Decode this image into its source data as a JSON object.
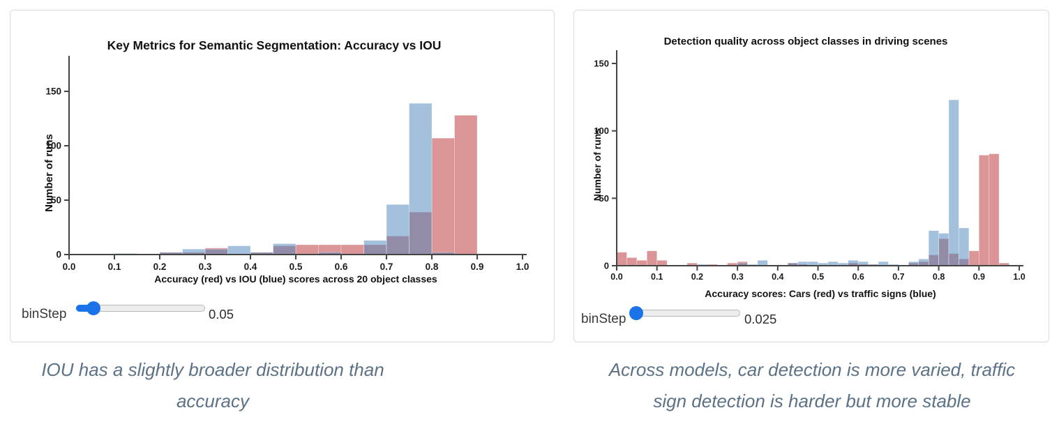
{
  "accent_color": "#1a73e8",
  "caption_color": "#5b7186",
  "panels": [
    {
      "name": "semantic-segmentation-panel",
      "slider": {
        "label": "binStep",
        "value": "0.05"
      },
      "caption_lines": [
        "IOU has a slightly broader distribution than accuracy"
      ]
    },
    {
      "name": "detection-quality-panel",
      "slider": {
        "label": "binStep",
        "value": "0.025"
      },
      "caption_lines": [
        "Across models, car detection is more varied, traffic",
        "sign detection is harder but more stable"
      ]
    }
  ],
  "chart_data": [
    {
      "type": "bar",
      "subtype": "overlaid-histogram",
      "title": "Key Metrics for Semantic Segmentation: Accuracy vs IOU",
      "xlabel": "Accuracy (red) vs IOU (blue) scores across 20 object classes",
      "ylabel": "Number of runs",
      "xlim": [
        0.0,
        1.0
      ],
      "ylim": [
        0,
        183
      ],
      "grid": false,
      "legend_position": "none",
      "bin_width": 0.05,
      "x_ticks": [
        0.0,
        0.1,
        0.2,
        0.3,
        0.4,
        0.5,
        0.6,
        0.7,
        0.8,
        0.9,
        1.0
      ],
      "y_ticks": [
        0,
        50,
        100,
        150
      ],
      "series": [
        {
          "name": "Accuracy (red)",
          "color": "#C44E52",
          "fill_opacity": 0.6,
          "bins": [
            [
              0.2,
              2
            ],
            [
              0.25,
              2
            ],
            [
              0.3,
              6
            ],
            [
              0.4,
              2
            ],
            [
              0.45,
              8
            ],
            [
              0.5,
              9
            ],
            [
              0.55,
              9
            ],
            [
              0.6,
              9
            ],
            [
              0.65,
              9
            ],
            [
              0.7,
              17
            ],
            [
              0.75,
              39
            ],
            [
              0.8,
              107
            ],
            [
              0.85,
              128
            ]
          ]
        },
        {
          "name": "IOU (blue)",
          "color": "#4783B9",
          "fill_opacity": 0.5,
          "bins": [
            [
              0.1,
              1
            ],
            [
              0.2,
              2
            ],
            [
              0.25,
              5
            ],
            [
              0.3,
              5
            ],
            [
              0.35,
              8
            ],
            [
              0.4,
              2
            ],
            [
              0.45,
              10
            ],
            [
              0.55,
              2
            ],
            [
              0.65,
              13
            ],
            [
              0.7,
              46
            ],
            [
              0.75,
              139
            ],
            [
              0.8,
              2
            ]
          ]
        }
      ]
    },
    {
      "type": "bar",
      "subtype": "overlaid-histogram",
      "title": "Detection quality across object classes in driving scenes",
      "xlabel": "Accuracy scores: Cars (red) vs traffic signs (blue)",
      "ylabel": "Number of runs",
      "xlim": [
        0.0,
        1.0
      ],
      "ylim": [
        0,
        160
      ],
      "grid": false,
      "legend_position": "none",
      "bin_width": 0.025,
      "x_ticks": [
        0.0,
        0.1,
        0.2,
        0.3,
        0.4,
        0.5,
        0.6,
        0.7,
        0.8,
        0.9,
        1.0
      ],
      "y_ticks": [
        0,
        50,
        100,
        150
      ],
      "series": [
        {
          "name": "Cars (red)",
          "color": "#C44E52",
          "fill_opacity": 0.6,
          "bins": [
            [
              0.0,
              10
            ],
            [
              0.025,
              6
            ],
            [
              0.05,
              4
            ],
            [
              0.075,
              11
            ],
            [
              0.1,
              4
            ],
            [
              0.175,
              2
            ],
            [
              0.225,
              1
            ],
            [
              0.275,
              2
            ],
            [
              0.3,
              3
            ],
            [
              0.425,
              2
            ],
            [
              0.45,
              1
            ],
            [
              0.575,
              2
            ],
            [
              0.6,
              1
            ],
            [
              0.625,
              1
            ],
            [
              0.725,
              2
            ],
            [
              0.75,
              3
            ],
            [
              0.775,
              8
            ],
            [
              0.8,
              20
            ],
            [
              0.825,
              9
            ],
            [
              0.85,
              5
            ],
            [
              0.875,
              11
            ],
            [
              0.9,
              82
            ],
            [
              0.925,
              83
            ],
            [
              0.95,
              2
            ]
          ]
        },
        {
          "name": "Traffic signs (blue)",
          "color": "#4783B9",
          "fill_opacity": 0.5,
          "bins": [
            [
              0.2,
              1
            ],
            [
              0.3,
              2
            ],
            [
              0.325,
              1
            ],
            [
              0.35,
              4
            ],
            [
              0.425,
              2
            ],
            [
              0.45,
              3
            ],
            [
              0.475,
              3
            ],
            [
              0.5,
              2
            ],
            [
              0.525,
              3
            ],
            [
              0.55,
              2
            ],
            [
              0.575,
              4
            ],
            [
              0.6,
              3
            ],
            [
              0.625,
              1
            ],
            [
              0.65,
              3
            ],
            [
              0.675,
              1
            ],
            [
              0.725,
              3
            ],
            [
              0.75,
              5
            ],
            [
              0.775,
              26
            ],
            [
              0.8,
              24
            ],
            [
              0.825,
              123
            ],
            [
              0.85,
              28
            ]
          ]
        }
      ]
    }
  ]
}
